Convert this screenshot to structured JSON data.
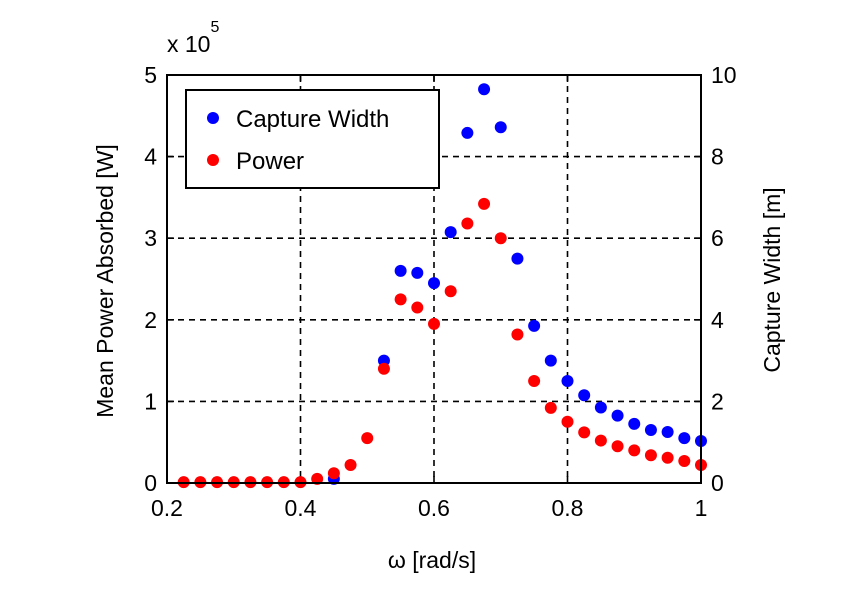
{
  "chart_data": {
    "type": "scatter",
    "xlabel": "ω [rad/s]",
    "ylabel": "Mean Power Absorbed [W]",
    "y2label": "Capture Width [m]",
    "exponent_label": "x 10",
    "exponent_power": "5",
    "xlim": [
      0.2,
      1.0
    ],
    "ylim": [
      0,
      5
    ],
    "y2lim": [
      0,
      10
    ],
    "x_ticks": [
      0.2,
      0.4,
      0.6,
      0.8,
      1.0
    ],
    "x_tick_labels": [
      "0.2",
      "0.4",
      "0.6",
      "0.8",
      "1"
    ],
    "y_ticks": [
      0,
      1,
      2,
      3,
      4,
      5
    ],
    "y_tick_labels": [
      "0",
      "1",
      "2",
      "3",
      "4",
      "5"
    ],
    "y2_ticks": [
      0,
      2,
      4,
      6,
      8,
      10
    ],
    "y2_tick_labels": [
      "0",
      "2",
      "4",
      "6",
      "8",
      "10"
    ],
    "grid": true,
    "grid_x": [
      0.4,
      0.6,
      0.8
    ],
    "grid_y": [
      1,
      2,
      3,
      4
    ],
    "legend_position": "top-left",
    "series": [
      {
        "name": "Capture Width",
        "color": "#0000ff",
        "axis": "right",
        "x": [
          0.45,
          0.525,
          0.55,
          0.575,
          0.6,
          0.625,
          0.65,
          0.675,
          0.7,
          0.725,
          0.75,
          0.775,
          0.8,
          0.825,
          0.85,
          0.875,
          0.9,
          0.925,
          0.95,
          0.975,
          1.0
        ],
        "y": [
          0.1,
          3.0,
          5.2,
          5.15,
          4.9,
          6.15,
          8.58,
          9.65,
          8.72,
          5.5,
          3.85,
          3.0,
          2.5,
          2.15,
          1.85,
          1.65,
          1.45,
          1.3,
          1.25,
          1.1,
          1.03
        ]
      },
      {
        "name": "Power",
        "color": "#ff0000",
        "axis": "left",
        "x": [
          0.225,
          0.25,
          0.275,
          0.3,
          0.325,
          0.35,
          0.375,
          0.4,
          0.425,
          0.45,
          0.475,
          0.5,
          0.525,
          0.55,
          0.575,
          0.6,
          0.625,
          0.65,
          0.675,
          0.7,
          0.725,
          0.75,
          0.775,
          0.8,
          0.825,
          0.85,
          0.875,
          0.9,
          0.925,
          0.95,
          0.975,
          1.0
        ],
        "y": [
          0.01,
          0.01,
          0.01,
          0.01,
          0.01,
          0.01,
          0.01,
          0.01,
          0.05,
          0.12,
          0.22,
          0.55,
          1.4,
          2.25,
          2.15,
          1.95,
          2.35,
          3.18,
          3.42,
          3.0,
          1.82,
          1.25,
          0.92,
          0.75,
          0.62,
          0.52,
          0.45,
          0.4,
          0.34,
          0.31,
          0.27,
          0.22
        ]
      }
    ]
  }
}
